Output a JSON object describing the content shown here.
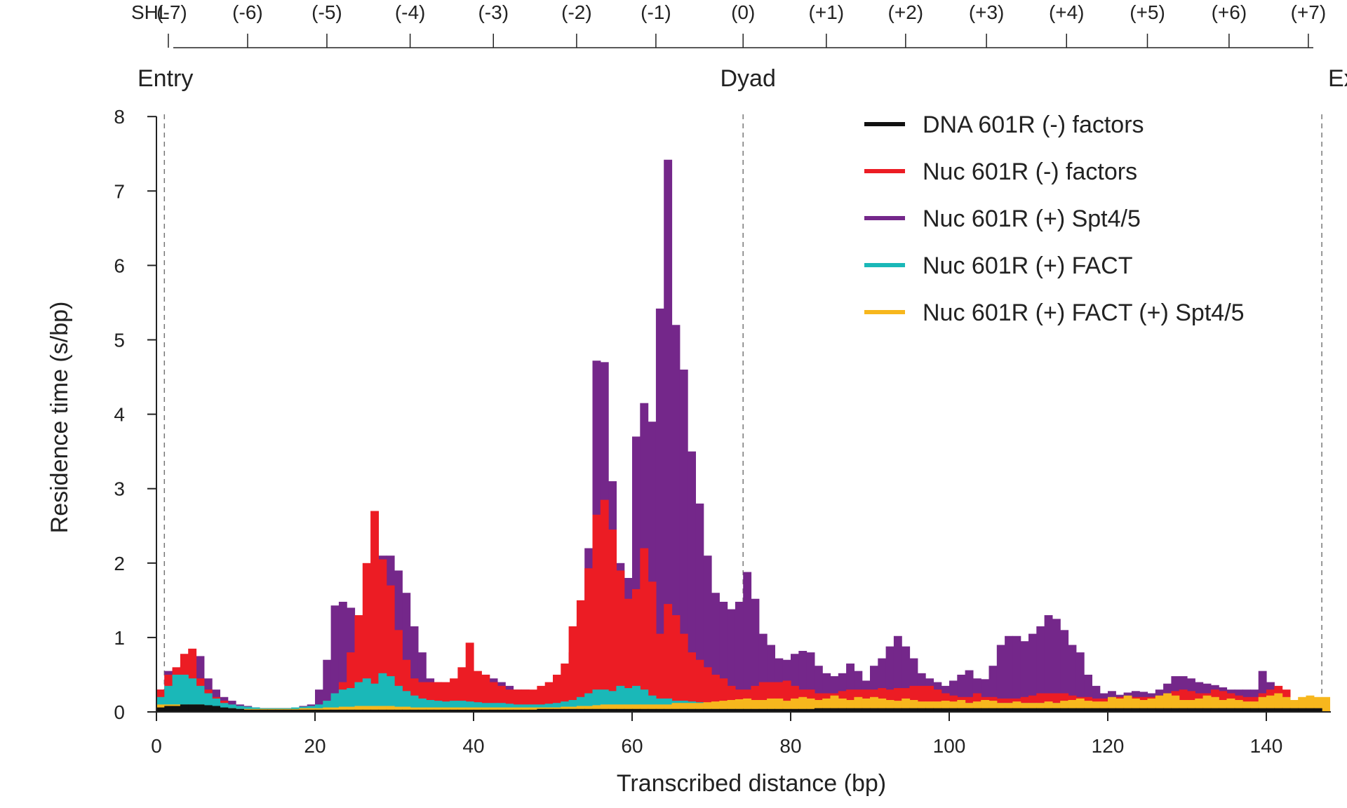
{
  "chart_data": {
    "type": "area",
    "title": "",
    "xlabel": "Transcribed distance (bp)",
    "ylabel": "Residence time (s/bp)",
    "xlim": [
      0,
      148
    ],
    "ylim": [
      0,
      8
    ],
    "xticks": [
      "0",
      "20",
      "40",
      "60",
      "80",
      "100",
      "120",
      "140"
    ],
    "yticks": [
      "0",
      "1",
      "2",
      "3",
      "4",
      "5",
      "6",
      "7",
      "8"
    ],
    "grid": false,
    "legend_position": "top-right",
    "top_axis": {
      "prefix": "SHL",
      "labels": [
        "(-7)",
        "(-6)",
        "(-5)",
        "(-4)",
        "(-3)",
        "(-2)",
        "(-1)",
        "(0)",
        "(+1)",
        "(+2)",
        "(+3)",
        "(+4)",
        "(+5)",
        "(+6)",
        "(+7)"
      ],
      "positions": [
        1.5,
        11.5,
        21.5,
        32,
        42.5,
        53,
        63,
        74,
        84.5,
        94.5,
        104.7,
        114.8,
        125,
        135.3,
        145.3
      ]
    },
    "region_markers": [
      {
        "label": "Entry",
        "x": 1
      },
      {
        "label": "Dyad",
        "x": 74
      },
      {
        "label": "Exit",
        "x": 147
      }
    ],
    "series": [
      {
        "name": "Nuc 601R (+) Spt4/5",
        "color": "#74278a",
        "values": [
          0.3,
          0.55,
          0.58,
          0.62,
          0.75,
          0.75,
          0.45,
          0.3,
          0.2,
          0.15,
          0.1,
          0.08,
          0.06,
          0.05,
          0.05,
          0.05,
          0.05,
          0.05,
          0.08,
          0.1,
          0.3,
          0.7,
          1.43,
          1.48,
          1.4,
          1.25,
          1.1,
          1.7,
          2.1,
          2.1,
          1.9,
          1.6,
          1.15,
          0.8,
          0.45,
          0.4,
          0.35,
          0.38,
          0.4,
          0.45,
          0.5,
          0.5,
          0.45,
          0.4,
          0.35,
          0.3,
          0.3,
          0.28,
          0.3,
          0.35,
          0.4,
          0.5,
          0.8,
          1.2,
          2.2,
          4.72,
          4.7,
          3.1,
          2.0,
          1.8,
          3.7,
          4.15,
          3.9,
          5.42,
          7.42,
          5.2,
          4.6,
          3.5,
          2.8,
          2.1,
          1.6,
          1.48,
          1.38,
          1.48,
          1.88,
          1.52,
          1.05,
          0.9,
          0.72,
          0.7,
          0.78,
          0.82,
          0.8,
          0.62,
          0.52,
          0.48,
          0.52,
          0.65,
          0.55,
          0.42,
          0.62,
          0.72,
          0.88,
          1.02,
          0.88,
          0.72,
          0.52,
          0.45,
          0.4,
          0.35,
          0.42,
          0.5,
          0.56,
          0.45,
          0.44,
          0.62,
          0.9,
          1.02,
          1.02,
          0.95,
          1.05,
          1.15,
          1.3,
          1.25,
          1.1,
          0.9,
          0.8,
          0.5,
          0.35,
          0.25,
          0.28,
          0.23,
          0.26,
          0.28,
          0.27,
          0.25,
          0.3,
          0.38,
          0.48,
          0.48,
          0.45,
          0.4,
          0.38,
          0.36,
          0.33,
          0.3,
          0.3,
          0.3,
          0.3,
          0.55,
          0.4
        ]
      },
      {
        "name": "Nuc 601R (-) factors",
        "color": "#ec1c24",
        "values": [
          0.3,
          0.5,
          0.6,
          0.78,
          0.85,
          0.45,
          0.3,
          0.2,
          0.15,
          0.1,
          0.08,
          0.06,
          0.05,
          0.05,
          0.05,
          0.05,
          0.05,
          0.05,
          0.05,
          0.05,
          0.08,
          0.15,
          0.25,
          0.4,
          0.8,
          1.3,
          2.0,
          2.7,
          2.05,
          1.7,
          1.1,
          0.7,
          0.45,
          0.4,
          0.4,
          0.4,
          0.4,
          0.45,
          0.6,
          0.93,
          0.55,
          0.5,
          0.4,
          0.35,
          0.3,
          0.3,
          0.3,
          0.3,
          0.35,
          0.4,
          0.5,
          0.65,
          1.15,
          1.5,
          1.93,
          2.65,
          2.85,
          2.45,
          1.9,
          1.52,
          1.65,
          2.2,
          1.75,
          1.05,
          1.45,
          1.3,
          1.05,
          0.8,
          0.7,
          0.6,
          0.5,
          0.45,
          0.35,
          0.3,
          0.3,
          0.35,
          0.4,
          0.4,
          0.4,
          0.42,
          0.35,
          0.3,
          0.3,
          0.25,
          0.25,
          0.25,
          0.28,
          0.3,
          0.3,
          0.3,
          0.3,
          0.32,
          0.3,
          0.32,
          0.32,
          0.35,
          0.35,
          0.35,
          0.3,
          0.25,
          0.22,
          0.2,
          0.2,
          0.25,
          0.2,
          0.2,
          0.18,
          0.18,
          0.18,
          0.2,
          0.22,
          0.25,
          0.25,
          0.25,
          0.25,
          0.22,
          0.2,
          0.2,
          0.18,
          0.18,
          0.18,
          0.2,
          0.2,
          0.2,
          0.2,
          0.2,
          0.22,
          0.25,
          0.28,
          0.3,
          0.28,
          0.25,
          0.25,
          0.3,
          0.28,
          0.25,
          0.22,
          0.2,
          0.2,
          0.25,
          0.3,
          0.35,
          0.3
        ]
      },
      {
        "name": "Nuc 601R (+) FACT",
        "color": "#1ab8b8",
        "values": [
          0.2,
          0.35,
          0.5,
          0.5,
          0.45,
          0.35,
          0.25,
          0.18,
          0.12,
          0.1,
          0.08,
          0.07,
          0.06,
          0.05,
          0.05,
          0.05,
          0.05,
          0.06,
          0.07,
          0.08,
          0.1,
          0.15,
          0.25,
          0.3,
          0.32,
          0.4,
          0.45,
          0.38,
          0.52,
          0.48,
          0.35,
          0.28,
          0.22,
          0.18,
          0.16,
          0.15,
          0.14,
          0.15,
          0.15,
          0.14,
          0.13,
          0.12,
          0.12,
          0.12,
          0.11,
          0.1,
          0.1,
          0.1,
          0.1,
          0.11,
          0.12,
          0.14,
          0.16,
          0.2,
          0.25,
          0.3,
          0.3,
          0.28,
          0.35,
          0.32,
          0.35,
          0.3,
          0.22,
          0.18,
          0.18,
          0.15,
          0.15,
          0.14,
          0.13,
          0.12,
          0.12,
          0.12,
          0.12,
          0.12,
          0.13,
          0.14,
          0.14,
          0.13,
          0.12,
          0.12,
          0.12,
          0.12,
          0.12,
          0.12,
          0.12,
          0.12,
          0.12,
          0.12,
          0.12,
          0.12,
          0.12,
          0.12,
          0.12,
          0.12,
          0.12,
          0.12,
          0.12,
          0.12,
          0.12,
          0.12,
          0.12,
          0.12,
          0.12,
          0.12,
          0.12,
          0.12,
          0.12,
          0.12,
          0.12,
          0.12,
          0.12,
          0.12,
          0.12,
          0.12,
          0.12,
          0.12,
          0.12,
          0.12,
          0.12,
          0.12,
          0.12,
          0.12,
          0.12,
          0.12,
          0.12,
          0.12,
          0.12,
          0.12,
          0.12,
          0.12,
          0.12,
          0.12,
          0.12,
          0.12,
          0.12,
          0.12,
          0.12,
          0.12,
          0.12,
          0.12,
          0.12,
          0.12,
          0.12,
          0.12,
          0.12,
          0.12
        ]
      },
      {
        "name": "Nuc 601R (+) FACT (+) Spt4/5",
        "color": "#f7b71d",
        "values": [
          0.1,
          0.1,
          0.1,
          0.1,
          0.1,
          0.1,
          0.08,
          0.06,
          0.05,
          0.05,
          0.04,
          0.04,
          0.04,
          0.04,
          0.04,
          0.04,
          0.04,
          0.04,
          0.05,
          0.05,
          0.05,
          0.06,
          0.06,
          0.07,
          0.07,
          0.08,
          0.08,
          0.08,
          0.08,
          0.08,
          0.07,
          0.07,
          0.06,
          0.06,
          0.06,
          0.06,
          0.06,
          0.06,
          0.06,
          0.06,
          0.06,
          0.06,
          0.06,
          0.06,
          0.06,
          0.06,
          0.06,
          0.06,
          0.06,
          0.06,
          0.06,
          0.07,
          0.07,
          0.08,
          0.08,
          0.09,
          0.1,
          0.1,
          0.1,
          0.1,
          0.1,
          0.1,
          0.1,
          0.1,
          0.1,
          0.12,
          0.12,
          0.12,
          0.12,
          0.13,
          0.14,
          0.15,
          0.16,
          0.17,
          0.18,
          0.16,
          0.16,
          0.18,
          0.18,
          0.15,
          0.18,
          0.2,
          0.18,
          0.16,
          0.18,
          0.22,
          0.18,
          0.16,
          0.2,
          0.18,
          0.2,
          0.18,
          0.16,
          0.15,
          0.18,
          0.16,
          0.14,
          0.14,
          0.14,
          0.15,
          0.14,
          0.16,
          0.12,
          0.14,
          0.16,
          0.15,
          0.12,
          0.12,
          0.14,
          0.12,
          0.12,
          0.12,
          0.14,
          0.12,
          0.15,
          0.16,
          0.18,
          0.15,
          0.14,
          0.14,
          0.2,
          0.18,
          0.22,
          0.18,
          0.16,
          0.18,
          0.22,
          0.25,
          0.22,
          0.16,
          0.16,
          0.18,
          0.22,
          0.2,
          0.16,
          0.18,
          0.16,
          0.14,
          0.14,
          0.2,
          0.22,
          0.25,
          0.2,
          0.16,
          0.2,
          0.22,
          0.2,
          0.2
        ]
      },
      {
        "name": "DNA 601R (-) factors",
        "color": "#111111",
        "values": [
          0.06,
          0.08,
          0.08,
          0.1,
          0.1,
          0.1,
          0.09,
          0.08,
          0.06,
          0.05,
          0.04,
          0.03,
          0.03,
          0.03,
          0.03,
          0.03,
          0.03,
          0.03,
          0.03,
          0.03,
          0.03,
          0.03,
          0.03,
          0.03,
          0.03,
          0.03,
          0.03,
          0.03,
          0.03,
          0.03,
          0.03,
          0.03,
          0.03,
          0.03,
          0.03,
          0.03,
          0.03,
          0.03,
          0.03,
          0.03,
          0.03,
          0.03,
          0.03,
          0.03,
          0.03,
          0.03,
          0.03,
          0.03,
          0.04,
          0.04,
          0.04,
          0.04,
          0.04,
          0.04,
          0.04,
          0.04,
          0.04,
          0.04,
          0.04,
          0.04,
          0.04,
          0.04,
          0.04,
          0.04,
          0.04,
          0.04,
          0.04,
          0.04,
          0.04,
          0.04,
          0.04,
          0.04,
          0.04,
          0.04,
          0.04,
          0.04,
          0.04,
          0.04,
          0.04,
          0.04,
          0.04,
          0.04,
          0.04,
          0.05,
          0.05,
          0.05,
          0.05,
          0.05,
          0.05,
          0.05,
          0.05,
          0.05,
          0.05,
          0.05,
          0.05,
          0.05,
          0.05,
          0.05,
          0.05,
          0.05,
          0.05,
          0.05,
          0.05,
          0.05,
          0.05,
          0.05,
          0.05,
          0.05,
          0.05,
          0.05,
          0.05,
          0.05,
          0.05,
          0.05,
          0.05,
          0.05,
          0.05,
          0.05,
          0.05,
          0.05,
          0.05,
          0.05,
          0.05,
          0.05,
          0.05,
          0.05,
          0.05,
          0.05,
          0.05,
          0.05,
          0.05,
          0.05,
          0.05,
          0.05,
          0.05,
          0.05,
          0.05,
          0.05,
          0.05,
          0.05,
          0.05,
          0.05,
          0.05,
          0.05,
          0.05,
          0.05,
          0.05
        ]
      }
    ],
    "legend": [
      {
        "label": "DNA 601R (-) factors",
        "color": "#111111"
      },
      {
        "label": "Nuc 601R (-) factors",
        "color": "#ec1c24"
      },
      {
        "label": "Nuc 601R (+) Spt4/5",
        "color": "#74278a"
      },
      {
        "label": "Nuc 601R (+) FACT",
        "color": "#1ab8b8"
      },
      {
        "label": "Nuc 601R (+) FACT (+) Spt4/5",
        "color": "#f7b71d"
      }
    ]
  }
}
